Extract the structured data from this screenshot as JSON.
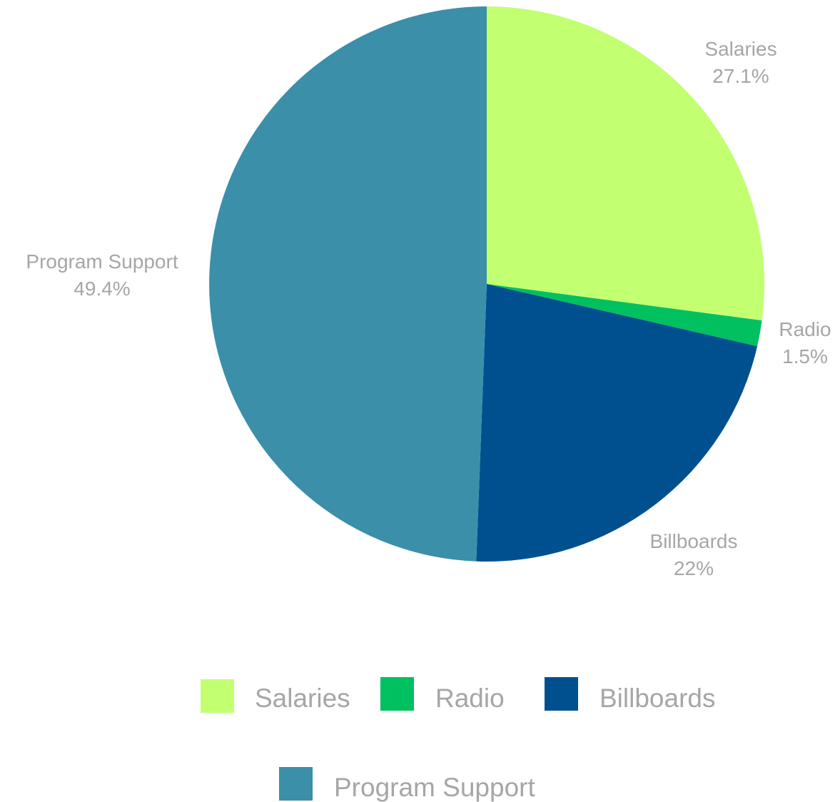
{
  "chart_data": {
    "type": "pie",
    "title": "",
    "categories": [
      "Salaries",
      "Radio",
      "Billboards",
      "Program Support"
    ],
    "values": [
      27.1,
      1.5,
      22.0,
      49.4
    ],
    "value_labels": [
      "27.1%",
      "1.5%",
      "22%",
      "49.4%"
    ],
    "colors": [
      "#c2ff71",
      "#00c060",
      "#005090",
      "#3b8fa9"
    ],
    "start_angle": "12 o'clock",
    "direction": "clockwise",
    "legend": {
      "position": "bottom",
      "entries": [
        "Salaries",
        "Radio",
        "Billboards",
        "Program Support"
      ]
    }
  }
}
